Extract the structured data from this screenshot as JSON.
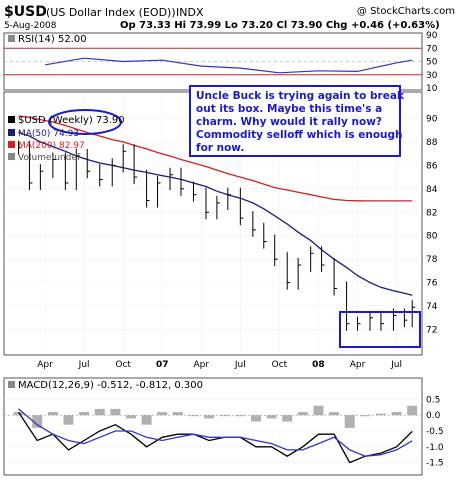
{
  "header": {
    "symbol": "$USD",
    "name": "(US Dollar Index (EOD))",
    "exchange": "INDX",
    "watermark": "@ StockCharts.com",
    "date": "5-Aug-2008",
    "quote": "Op 73.33  Hi 73.99  Lo 73.20  Cl 73.90  Chg +0.46 (+0.63%)"
  },
  "rsi_panel": {
    "label": "RSI(14) 52.00",
    "axis_ticks": [
      90,
      70,
      50,
      30,
      10
    ],
    "overbought": 70,
    "oversold": 30,
    "series_color": "#3333cc"
  },
  "price_panel": {
    "legend": [
      {
        "label": "$USD (Weekly) 73.90",
        "color": "#000000"
      },
      {
        "label": "MA(50) 74.93",
        "color": "#1a1a80"
      },
      {
        "label": "MA(200) 82.97",
        "color": "#d42020"
      },
      {
        "label": "Volume undef",
        "color": "#555555"
      }
    ],
    "annotation": "Uncle Buck is trying again to break out its box.  Maybe this time's a charm.  Why would it rally now?  Commodity selloff which is enough for now.",
    "annotation_color": "#1a1acc"
  },
  "x_axis_labels": [
    "Apr",
    "Jul",
    "Oct",
    "07",
    "Apr",
    "Jul",
    "Oct",
    "08",
    "Apr",
    "Jul"
  ],
  "macd_panel": {
    "label": "MACD(12,26,9) -0.512, -0.812, 0.300",
    "axis_ticks": [
      "0.5",
      "0.0",
      "-0.5",
      "-1.0",
      "-1.5"
    ]
  },
  "chart_data": [
    {
      "type": "line",
      "title": "RSI(14) 52.00",
      "ylim": [
        10,
        90
      ],
      "x": [
        2006.25,
        2006.5,
        2006.75,
        2007.0,
        2007.25,
        2007.5,
        2007.75,
        2008.0,
        2008.25,
        2008.5,
        2008.6
      ],
      "series": [
        {
          "name": "RSI(14)",
          "values": [
            45,
            55,
            50,
            52,
            43,
            40,
            33,
            36,
            35,
            48,
            52
          ]
        }
      ]
    },
    {
      "type": "line",
      "title": "$USD (US Dollar Index (EOD)) INDX",
      "ylim": [
        70,
        92
      ],
      "y_ticks": [
        72,
        74,
        76,
        78,
        80,
        82,
        84,
        86,
        88,
        90
      ],
      "x_ticks": [
        "Apr",
        "Jul",
        "Oct",
        "07",
        "Apr",
        "Jul",
        "Oct",
        "08",
        "Apr",
        "Jul"
      ],
      "x_tick_values": [
        2006.25,
        2006.5,
        2006.75,
        2007.0,
        2007.25,
        2007.5,
        2007.75,
        2008.0,
        2008.25,
        2008.5
      ],
      "x": [
        2006.08,
        2006.15,
        2006.22,
        2006.3,
        2006.38,
        2006.45,
        2006.52,
        2006.6,
        2006.68,
        2006.75,
        2006.82,
        2006.9,
        2006.97,
        2007.05,
        2007.12,
        2007.2,
        2007.28,
        2007.35,
        2007.42,
        2007.5,
        2007.58,
        2007.65,
        2007.72,
        2007.8,
        2007.87,
        2007.95,
        2008.02,
        2008.1,
        2008.18,
        2008.25,
        2008.33,
        2008.4,
        2008.48,
        2008.55,
        2008.6
      ],
      "series": [
        {
          "name": "$USD (Weekly)",
          "values": [
            87.5,
            84.5,
            85.5,
            86.5,
            84.5,
            86.8,
            85.5,
            84.8,
            86.0,
            87.2,
            85.0,
            83.0,
            84.5,
            85.2,
            84.0,
            83.5,
            82.0,
            82.8,
            83.5,
            81.5,
            80.5,
            79.5,
            78.0,
            76.0,
            77.5,
            78.5,
            77.5,
            75.5,
            72.5,
            72.5,
            73.0,
            72.5,
            73.2,
            72.8,
            73.9
          ]
        },
        {
          "name": "MA(50)",
          "values": [
            88.8,
            88.5,
            88.0,
            87.6,
            87.2,
            86.8,
            86.5,
            86.2,
            86.0,
            85.8,
            85.6,
            85.4,
            85.2,
            85.0,
            84.8,
            84.5,
            84.2,
            83.8,
            83.5,
            83.2,
            82.8,
            82.3,
            81.7,
            81.0,
            80.3,
            79.6,
            78.8,
            78.0,
            77.3,
            76.6,
            76.0,
            75.6,
            75.3,
            75.1,
            74.93
          ]
        },
        {
          "name": "MA(200)",
          "values": [
            90.2,
            90.1,
            89.9,
            89.7,
            89.4,
            89.1,
            88.8,
            88.5,
            88.2,
            88.0,
            87.7,
            87.4,
            87.1,
            86.8,
            86.5,
            86.2,
            85.9,
            85.6,
            85.3,
            85.0,
            84.7,
            84.4,
            84.1,
            83.9,
            83.7,
            83.5,
            83.3,
            83.1,
            83.0,
            82.98,
            82.97,
            82.97,
            82.97,
            82.97,
            82.97
          ]
        }
      ]
    },
    {
      "type": "line",
      "title": "MACD(12,26,9) -0.512, -0.812, 0.300",
      "ylim": [
        -1.8,
        0.8
      ],
      "y_ticks": [
        0.5,
        0.0,
        -0.5,
        -1.0,
        -1.5
      ],
      "x": [
        2006.08,
        2006.2,
        2006.3,
        2006.4,
        2006.5,
        2006.6,
        2006.7,
        2006.8,
        2006.9,
        2007.0,
        2007.1,
        2007.2,
        2007.3,
        2007.4,
        2007.5,
        2007.6,
        2007.7,
        2007.8,
        2007.9,
        2008.0,
        2008.1,
        2008.2,
        2008.3,
        2008.4,
        2008.5,
        2008.6
      ],
      "series": [
        {
          "name": "MACD",
          "values": [
            0.1,
            -0.8,
            -0.6,
            -1.1,
            -0.8,
            -0.5,
            -0.3,
            -0.6,
            -1.0,
            -0.7,
            -0.6,
            -0.6,
            -0.8,
            -0.7,
            -0.7,
            -1.0,
            -1.0,
            -1.3,
            -1.0,
            -0.6,
            -0.6,
            -1.5,
            -1.3,
            -1.2,
            -1.0,
            -0.512
          ]
        },
        {
          "name": "Signal",
          "values": [
            0.2,
            -0.3,
            -0.6,
            -0.8,
            -0.9,
            -0.7,
            -0.5,
            -0.5,
            -0.7,
            -0.8,
            -0.7,
            -0.6,
            -0.7,
            -0.7,
            -0.7,
            -0.8,
            -0.9,
            -1.1,
            -1.1,
            -0.9,
            -0.7,
            -1.1,
            -1.3,
            -1.25,
            -1.1,
            -0.812
          ]
        },
        {
          "name": "Histogram",
          "values": [
            0.1,
            -0.4,
            0.1,
            -0.3,
            0.1,
            0.2,
            0.2,
            -0.1,
            -0.3,
            0.1,
            0.1,
            0.0,
            -0.1,
            0.0,
            0.0,
            -0.2,
            -0.1,
            -0.2,
            0.1,
            0.3,
            0.1,
            -0.4,
            0.0,
            0.05,
            0.1,
            0.3
          ]
        }
      ]
    }
  ]
}
